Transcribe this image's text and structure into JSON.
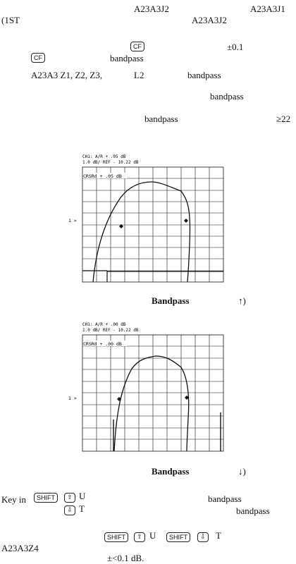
{
  "text": {
    "l1a": "A23A3J2",
    "l1b": "A23A3J1",
    "l2a": "(1ST",
    "l2b": "A23A3J2",
    "key_cf": "CF",
    "pm01": "±0.1",
    "bandpass": "bandpass",
    "l5": "A23A3 Z1, Z2, Z3,",
    "l2coil": "L2",
    "ge22": "≥22",
    "cap1_title": "Bandpass",
    "cap1_sym": "↑)",
    "cap2_title": "Bandpass",
    "cap2_sym": "↓)",
    "keyin": "Key in",
    "shift": "SHIFT",
    "sup_u": "U",
    "sup_t": "T",
    "a23a3z4": "A23A3Z4",
    "final": "±<0.1 dB."
  },
  "plot1": {
    "header1": "CH1: A/R    +  .05 dB",
    "header2": " 1.0 dB/  REF  - 10.22 dB",
    "marker": "CRSRd +    .05 dB",
    "ref_label": "1 >"
  },
  "plot2": {
    "header1": "CH1: A/R    +  .00 dB",
    "header2": " 1.0 dB/  REF  - 10.22 dB",
    "marker": "CRSRd +    .00 dB",
    "ref_label": "1 >"
  }
}
